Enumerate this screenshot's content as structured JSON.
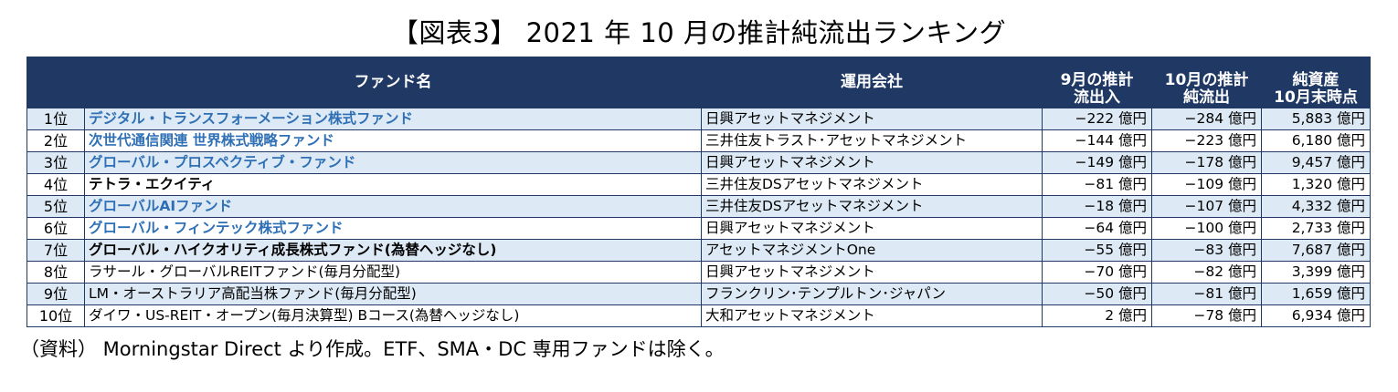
{
  "title": "【図表3】 2021 年 10 月の推計純流出ランキング",
  "table": {
    "headers": {
      "fund": "ファンド名",
      "company": "運用会社",
      "sep_flow_line1": "9月の推計",
      "sep_flow_line2": "流出入",
      "oct_flow_line1": "10月の推計",
      "oct_flow_line2": "純流出",
      "assets_line1": "純資産",
      "assets_line2": "10月末時点"
    },
    "rows": [
      {
        "rank": "1位",
        "fund": "デジタル・トランスフォーメーション株式ファンド",
        "company": "日興アセットマネジメント",
        "sep": "−222 億円",
        "oct": "−284 億円",
        "assets": "5,883 億円"
      },
      {
        "rank": "2位",
        "fund": "次世代通信関連 世界株式戦略ファンド",
        "company": "三井住友トラスト･アセットマネジメント",
        "sep": "−144 億円",
        "oct": "−223 億円",
        "assets": "6,180 億円"
      },
      {
        "rank": "3位",
        "fund": "グローバル・プロスペクティブ・ファンド",
        "company": "日興アセットマネジメント",
        "sep": "−149 億円",
        "oct": "−178 億円",
        "assets": "9,457 億円"
      },
      {
        "rank": "4位",
        "fund": "テトラ・エクイティ",
        "company": "三井住友DSアセットマネジメント",
        "sep": "−81 億円",
        "oct": "−109 億円",
        "assets": "1,320 億円"
      },
      {
        "rank": "5位",
        "fund": "グローバルAIファンド",
        "company": "三井住友DSアセットマネジメント",
        "sep": "−18 億円",
        "oct": "−107 億円",
        "assets": "4,332 億円"
      },
      {
        "rank": "6位",
        "fund": "グローバル・フィンテック株式ファンド",
        "company": "日興アセットマネジメント",
        "sep": "−64 億円",
        "oct": "−100 億円",
        "assets": "2,733 億円"
      },
      {
        "rank": "7位",
        "fund": "グローバル・ハイクオリティ成長株式ファンド(為替ヘッジなし)",
        "company": "アセットマネジメントOne",
        "sep": "−55 億円",
        "oct": "−83 億円",
        "assets": "7,687 億円"
      },
      {
        "rank": "8位",
        "fund": "ラサール・グローバルREITファンド(毎月分配型)",
        "company": "日興アセットマネジメント",
        "sep": "−70 億円",
        "oct": "−82 億円",
        "assets": "3,399 億円"
      },
      {
        "rank": "9位",
        "fund": "LM・オーストラリア高配当株ファンド(毎月分配型)",
        "company": "フランクリン･テンプルトン･ジャパン",
        "sep": "−50 億円",
        "oct": "−81 億円",
        "assets": "1,659 億円"
      },
      {
        "rank": "10位",
        "fund": "ダイワ・US-REIT・オープン(毎月決算型) Bコース(為替ヘッジなし)",
        "company": "大和アセットマネジメント",
        "sep": "2 億円",
        "oct": "−78 億円",
        "assets": "6,934 億円"
      }
    ]
  },
  "note": "（資料） Morningstar Direct より作成。ETF、SMA・DC 専用ファンドは除く。",
  "colors": {
    "header_bg": "#1f3864",
    "header_text": "#ffffff",
    "row_alt_bg": "#dde9f4",
    "fund_blue": "#2e6fb5"
  }
}
